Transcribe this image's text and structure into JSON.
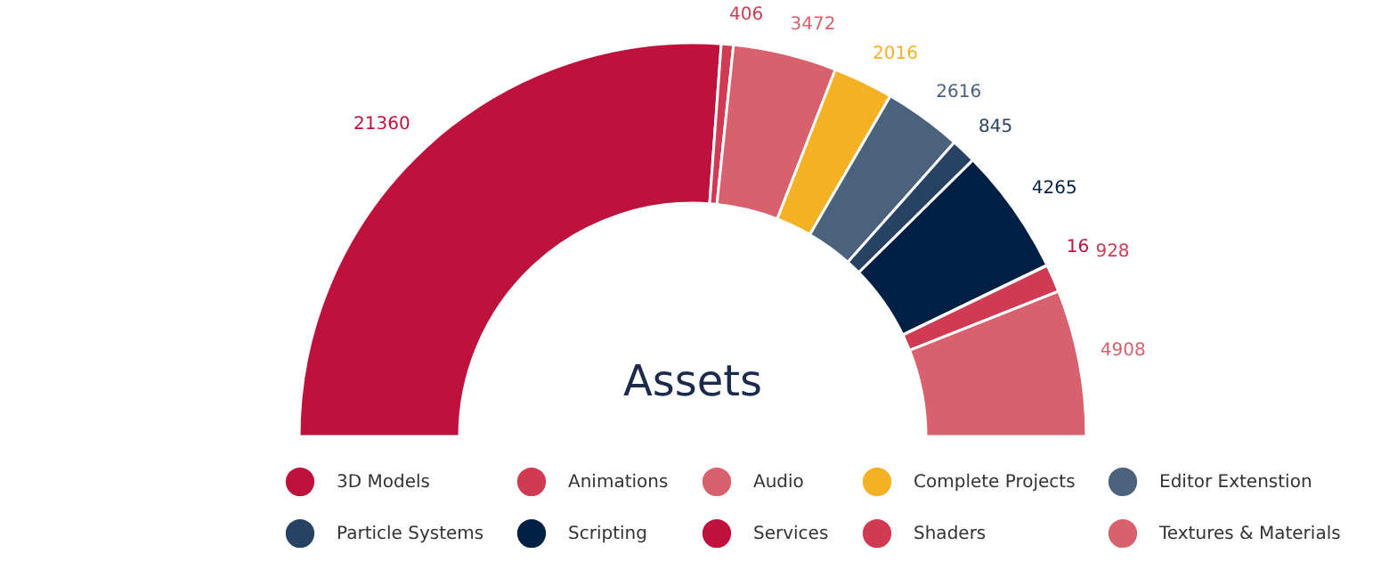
{
  "chart_data": {
    "type": "donut",
    "title": "Assets",
    "categories": [
      "3D Models",
      "Animations",
      "Audio",
      "Complete Projects",
      "Editor Extenstion",
      "Particle Systems",
      "Scripting",
      "Services",
      "Shaders",
      "Textures & Materials"
    ],
    "values": [
      21360,
      406,
      3472,
      2016,
      2616,
      845,
      4265,
      16,
      928,
      4908
    ],
    "colors": [
      "#be123c",
      "#d03a52",
      "#d9606d",
      "#f5b124",
      "#4b627d",
      "#274262",
      "#001f45",
      "#be123c",
      "#d03a52",
      "#d9606d"
    ],
    "data_labels": true,
    "legend": "bottom"
  }
}
